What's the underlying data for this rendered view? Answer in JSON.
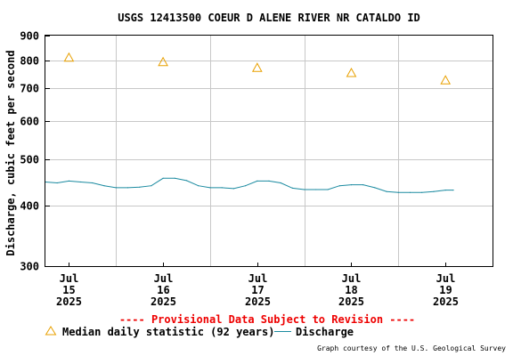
{
  "chart_data": {
    "type": "line",
    "title": "USGS 12413500 COEUR D ALENE RIVER NR CATALDO ID",
    "ylabel": "Discharge, cubic feet per second",
    "xlabel": "",
    "y_scale": "log",
    "ylim": [
      300,
      900
    ],
    "y_ticks": [
      300,
      400,
      500,
      600,
      700,
      800,
      900
    ],
    "xlim": [
      "2025-07-14T18:00",
      "2025-07-19T12:00"
    ],
    "x_ticks": [
      {
        "date": "2025-07-15T00:00",
        "month": "Jul",
        "day": "15",
        "year": "2025"
      },
      {
        "date": "2025-07-16T00:00",
        "month": "Jul",
        "day": "16",
        "year": "2025"
      },
      {
        "date": "2025-07-17T00:00",
        "month": "Jul",
        "day": "17",
        "year": "2025"
      },
      {
        "date": "2025-07-18T00:00",
        "month": "Jul",
        "day": "18",
        "year": "2025"
      },
      {
        "date": "2025-07-19T00:00",
        "month": "Jul",
        "day": "19",
        "year": "2025"
      }
    ],
    "grid": true,
    "legend_position": "bottom",
    "series": [
      {
        "name": "Median daily statistic (92 years)",
        "marker": "triangle",
        "color": "#e8a000",
        "points": [
          {
            "x": "2025-07-15T00:00",
            "y": 810
          },
          {
            "x": "2025-07-16T00:00",
            "y": 793
          },
          {
            "x": "2025-07-17T00:00",
            "y": 772
          },
          {
            "x": "2025-07-18T00:00",
            "y": 753
          },
          {
            "x": "2025-07-19T00:00",
            "y": 727
          }
        ]
      },
      {
        "name": "Discharge",
        "color": "#1a8aa0",
        "points": [
          {
            "x": "2025-07-14T18:00",
            "y": 448
          },
          {
            "x": "2025-07-14T21:00",
            "y": 446
          },
          {
            "x": "2025-07-15T00:00",
            "y": 450
          },
          {
            "x": "2025-07-15T03:00",
            "y": 448
          },
          {
            "x": "2025-07-15T06:00",
            "y": 446
          },
          {
            "x": "2025-07-15T09:00",
            "y": 440
          },
          {
            "x": "2025-07-15T12:00",
            "y": 436
          },
          {
            "x": "2025-07-15T15:00",
            "y": 436
          },
          {
            "x": "2025-07-15T18:00",
            "y": 437
          },
          {
            "x": "2025-07-15T21:00",
            "y": 440
          },
          {
            "x": "2025-07-16T00:00",
            "y": 456
          },
          {
            "x": "2025-07-16T03:00",
            "y": 456
          },
          {
            "x": "2025-07-16T06:00",
            "y": 451
          },
          {
            "x": "2025-07-16T09:00",
            "y": 440
          },
          {
            "x": "2025-07-16T12:00",
            "y": 436
          },
          {
            "x": "2025-07-16T15:00",
            "y": 436
          },
          {
            "x": "2025-07-16T18:00",
            "y": 434
          },
          {
            "x": "2025-07-16T21:00",
            "y": 440
          },
          {
            "x": "2025-07-17T00:00",
            "y": 450
          },
          {
            "x": "2025-07-17T03:00",
            "y": 450
          },
          {
            "x": "2025-07-17T06:00",
            "y": 446
          },
          {
            "x": "2025-07-17T09:00",
            "y": 435
          },
          {
            "x": "2025-07-17T12:00",
            "y": 432
          },
          {
            "x": "2025-07-17T15:00",
            "y": 432
          },
          {
            "x": "2025-07-17T18:00",
            "y": 432
          },
          {
            "x": "2025-07-17T21:00",
            "y": 440
          },
          {
            "x": "2025-07-18T00:00",
            "y": 442
          },
          {
            "x": "2025-07-18T03:00",
            "y": 442
          },
          {
            "x": "2025-07-18T06:00",
            "y": 436
          },
          {
            "x": "2025-07-18T09:00",
            "y": 428
          },
          {
            "x": "2025-07-18T12:00",
            "y": 426
          },
          {
            "x": "2025-07-18T15:00",
            "y": 426
          },
          {
            "x": "2025-07-18T18:00",
            "y": 426
          },
          {
            "x": "2025-07-18T21:00",
            "y": 428
          },
          {
            "x": "2025-07-19T00:00",
            "y": 431
          },
          {
            "x": "2025-07-19T02:00",
            "y": 431
          }
        ]
      }
    ]
  },
  "banner": "---- Provisional Data Subject to Revision ----",
  "legend": {
    "median_label": "Median daily statistic (92 years)",
    "discharge_label": "Discharge"
  },
  "credit": "Graph courtesy of the U.S. Geological Survey",
  "colors": {
    "banner": "#ee0000",
    "grid": "#c8c8c8",
    "median": "#e8a000",
    "discharge": "#1a8aa0"
  }
}
